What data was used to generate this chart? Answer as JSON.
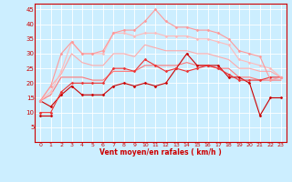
{
  "xlabel": "Vent moyen/en rafales ( km/h )",
  "bg_color": "#cceeff",
  "grid_color": "#ffffff",
  "x": [
    0,
    1,
    2,
    3,
    4,
    5,
    6,
    7,
    8,
    9,
    10,
    11,
    12,
    13,
    14,
    15,
    16,
    17,
    18,
    19,
    20,
    21,
    22,
    23
  ],
  "series": [
    {
      "y": [
        9,
        9,
        null,
        null,
        null,
        null,
        null,
        null,
        null,
        null,
        null,
        null,
        null,
        null,
        null,
        null,
        null,
        null,
        null,
        null,
        null,
        null,
        null,
        null
      ],
      "color": "#cc0000",
      "lw": 0.8,
      "marker": "D",
      "ms": 1.5
    },
    {
      "y": [
        14,
        12,
        16,
        19,
        16,
        16,
        16,
        19,
        20,
        19,
        20,
        19,
        20,
        25,
        30,
        26,
        26,
        26,
        22,
        22,
        20,
        9,
        15,
        15
      ],
      "color": "#cc0000",
      "lw": 0.8,
      "marker": "D",
      "ms": 1.5
    },
    {
      "y": [
        10,
        10,
        17,
        20,
        20,
        20,
        20,
        25,
        25,
        24,
        28,
        26,
        24,
        25,
        24,
        25,
        26,
        25,
        23,
        21,
        21,
        21,
        22,
        22
      ],
      "color": "#ee3333",
      "lw": 0.8,
      "marker": "D",
      "ms": 1.5
    },
    {
      "y": [
        14,
        16,
        22,
        22,
        22,
        21,
        21,
        24,
        24,
        24,
        26,
        26,
        26,
        26,
        27,
        26,
        26,
        25,
        25,
        22,
        22,
        21,
        21,
        21
      ],
      "color": "#ff7777",
      "lw": 0.8,
      "marker": null,
      "ms": 0
    },
    {
      "y": [
        14,
        19,
        23,
        30,
        27,
        26,
        26,
        30,
        30,
        29,
        33,
        32,
        31,
        31,
        31,
        30,
        30,
        29,
        28,
        25,
        25,
        24,
        24,
        22
      ],
      "color": "#ffaaaa",
      "lw": 0.8,
      "marker": null,
      "ms": 0
    },
    {
      "y": [
        14,
        17,
        24,
        34,
        30,
        30,
        30,
        37,
        37,
        36,
        37,
        37,
        36,
        36,
        36,
        35,
        35,
        34,
        33,
        28,
        27,
        26,
        25,
        22
      ],
      "color": "#ffbbbb",
      "lw": 0.8,
      "marker": "D",
      "ms": 1.5
    },
    {
      "y": [
        14,
        19,
        30,
        34,
        30,
        30,
        31,
        37,
        38,
        38,
        41,
        45,
        41,
        39,
        39,
        38,
        38,
        37,
        35,
        31,
        30,
        29,
        21,
        22
      ],
      "color": "#ff9999",
      "lw": 0.8,
      "marker": "D",
      "ms": 1.5
    }
  ],
  "xlim": [
    -0.5,
    23.5
  ],
  "ylim": [
    0,
    47
  ],
  "yticks": [
    5,
    10,
    15,
    20,
    25,
    30,
    35,
    40,
    45
  ],
  "xticks": [
    0,
    1,
    2,
    3,
    4,
    5,
    6,
    7,
    8,
    9,
    10,
    11,
    12,
    13,
    14,
    15,
    16,
    17,
    18,
    19,
    20,
    21,
    22,
    23
  ]
}
